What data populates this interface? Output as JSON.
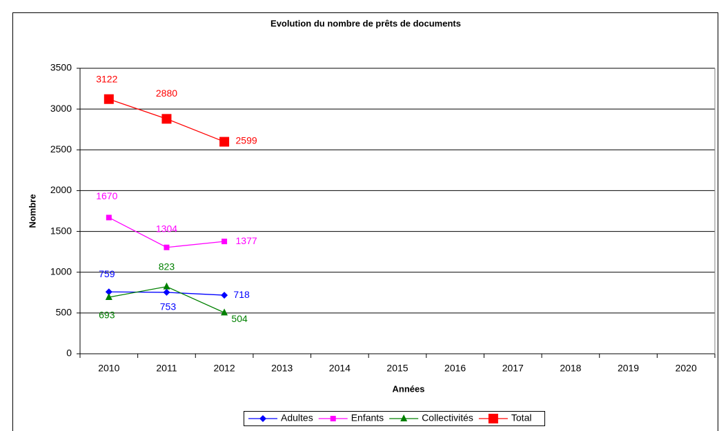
{
  "chart_data": {
    "type": "line",
    "title": "Evolution du nombre de prêts de documents",
    "x_label": "Années",
    "y_label": "Nombre",
    "categories": [
      "2010",
      "2011",
      "2012",
      "2013",
      "2014",
      "2015",
      "2016",
      "2017",
      "2018",
      "2019",
      "2020"
    ],
    "series": [
      {
        "name": "Adultes",
        "color": "#0000ff",
        "marker": "diamond",
        "values": [
          759,
          753,
          718,
          null,
          null,
          null,
          null,
          null,
          null,
          null,
          null
        ]
      },
      {
        "name": "Enfants",
        "color": "#ff00ff",
        "marker": "square",
        "values": [
          1670,
          1304,
          1377,
          null,
          null,
          null,
          null,
          null,
          null,
          null,
          null
        ]
      },
      {
        "name": "Collectivités",
        "color": "#008000",
        "marker": "triangle",
        "values": [
          693,
          823,
          504,
          null,
          null,
          null,
          null,
          null,
          null,
          null,
          null
        ]
      },
      {
        "name": "Total",
        "color": "#ff0000",
        "marker": "bigsquare",
        "values": [
          3122,
          2880,
          2599,
          null,
          null,
          null,
          null,
          null,
          null,
          null,
          null
        ]
      }
    ],
    "ylim": [
      0,
      3500
    ],
    "yticks": [
      0,
      500,
      1000,
      1500,
      2000,
      2500,
      3000,
      3500
    ],
    "grid": true,
    "legend": "bottom"
  }
}
